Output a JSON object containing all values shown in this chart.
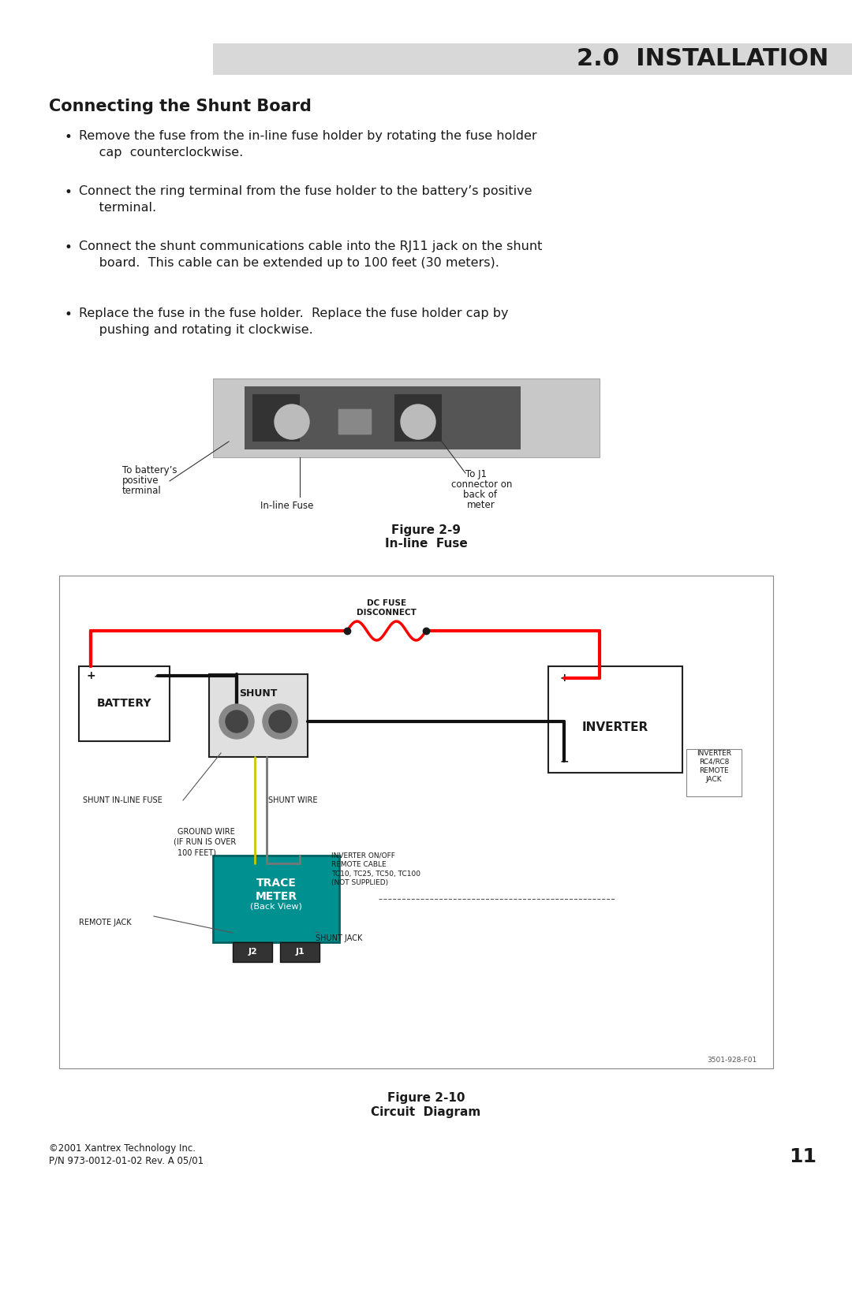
{
  "title_bar_text": "2.0  INSTALLATION",
  "title_bar_color": "#d8d8d8",
  "section_heading": "Connecting the Shunt Board",
  "bullets": [
    "Remove the fuse from the in-line fuse holder by rotating the fuse holder\ncap  counterclockwise.",
    "Connect the ring terminal from the fuse holder to the battery’s positive\nterminal.",
    "Connect the shunt communications cable into the RJ11 jack on the shunt\nboard.  This cable can be extended up to 100 feet (30 meters).",
    "Replace the fuse in the fuse holder.  Replace the fuse holder cap by\npushing and rotating it clockwise."
  ],
  "fig9_caption_line1": "Figure 2-9",
  "fig9_caption_line2": "In-line  Fuse",
  "fig10_caption_line1": "Figure 2-10",
  "fig10_caption_line2": "Circuit  Diagram",
  "footer_line1": "©2001 Xantrex Technology Inc.",
  "footer_line2": "P/N 973-0012-01-02 Rev. A 05/01",
  "page_number": "11",
  "bg_color": "#ffffff"
}
